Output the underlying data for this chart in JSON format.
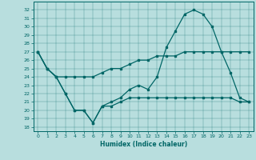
{
  "xlabel": "Humidex (Indice chaleur)",
  "bg_color": "#b8dede",
  "line_color": "#006666",
  "xlim": [
    -0.5,
    23.5
  ],
  "ylim": [
    17.5,
    33
  ],
  "yticks": [
    18,
    19,
    20,
    21,
    22,
    23,
    24,
    25,
    26,
    27,
    28,
    29,
    30,
    31,
    32
  ],
  "xticks": [
    0,
    1,
    2,
    3,
    4,
    5,
    6,
    7,
    8,
    9,
    10,
    11,
    12,
    13,
    14,
    15,
    16,
    17,
    18,
    19,
    20,
    21,
    22,
    23
  ],
  "line1_y": [
    27,
    25,
    24,
    24,
    24,
    24,
    24,
    24.5,
    25,
    25,
    25.5,
    26,
    26,
    26.5,
    26.5,
    26.5,
    27,
    27,
    27,
    27,
    27,
    27,
    27,
    27
  ],
  "line2_y": [
    27,
    25,
    24,
    22,
    20,
    20,
    18.5,
    20.5,
    21,
    21.5,
    22.5,
    23,
    22.5,
    24,
    27.5,
    29.5,
    31.5,
    32,
    31.5,
    30,
    27,
    24.5,
    21.5,
    21
  ],
  "line3_y": [
    27,
    25,
    24,
    22,
    20,
    20,
    18.5,
    20.5,
    20.5,
    21,
    21.5,
    21.5,
    21.5,
    21.5,
    21.5,
    21.5,
    21.5,
    21.5,
    21.5,
    21.5,
    21.5,
    21.5,
    21,
    21
  ]
}
